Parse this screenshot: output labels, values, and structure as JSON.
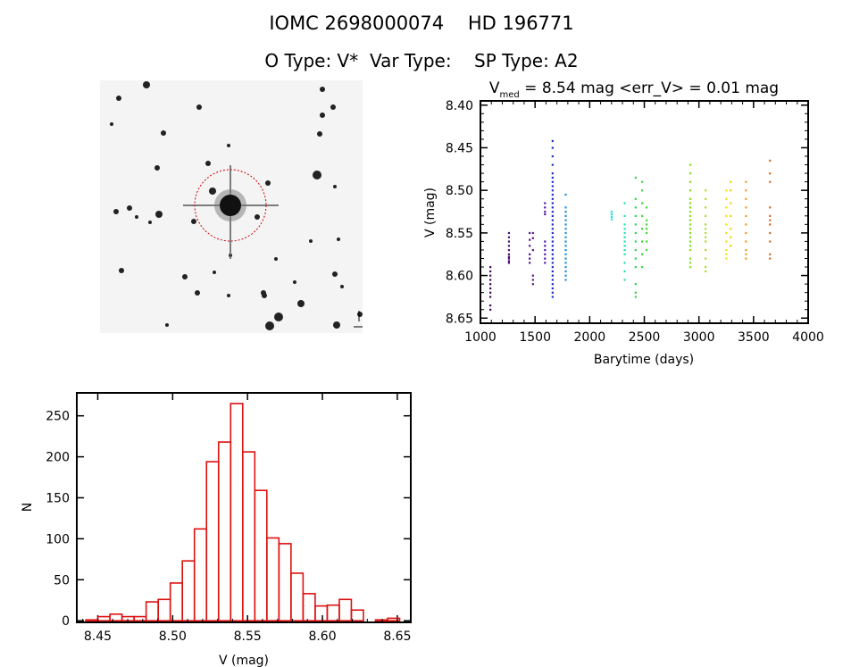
{
  "header": {
    "title_line1": "IOMC 2698000074    HD 196771",
    "title_line2": "O Type: V*  Var Type:    SP Type: A2"
  },
  "finder_image": {
    "type": "image",
    "description_labels_illegible": true,
    "circle_color": "#cc0000"
  },
  "chart_data": [
    {
      "type": "scatter",
      "title_prefix": "V",
      "title_subscript": "med",
      "title_rest": " = 8.54 mag <err_V> = 0.01 mag",
      "xlabel": "Barytime (days)",
      "ylabel": "V (mag)",
      "xlim": [
        1000,
        4000
      ],
      "ylim": [
        8.395,
        8.656
      ],
      "y_inverted": true,
      "xticks": [
        "1000",
        "1500",
        "2000",
        "2500",
        "3000",
        "3500",
        "4000"
      ],
      "yticks": [
        "8.40",
        "8.45",
        "8.50",
        "8.55",
        "8.60",
        "8.65"
      ],
      "grid": false,
      "series": [
        {
          "x": 1090,
          "color": "#3c0a5c",
          "y": [
            8.59,
            8.595,
            8.6,
            8.605,
            8.61,
            8.615,
            8.62,
            8.625,
            8.635,
            8.64
          ]
        },
        {
          "x": 1260,
          "color": "#4a0f70",
          "y": [
            8.55,
            8.555,
            8.56,
            8.565,
            8.57,
            8.575,
            8.578,
            8.58,
            8.583,
            8.585
          ]
        },
        {
          "x": 1450,
          "color": "#55158a",
          "y": [
            8.55,
            8.558,
            8.565,
            8.575,
            8.58,
            8.585
          ]
        },
        {
          "x": 1480,
          "color": "#55158a",
          "y": [
            8.55,
            8.556,
            8.57,
            8.6,
            8.605,
            8.61
          ]
        },
        {
          "x": 1590,
          "color": "#4e1ca2",
          "y": [
            8.515,
            8.52,
            8.525,
            8.528,
            8.56,
            8.565,
            8.57,
            8.575,
            8.58,
            8.585
          ]
        },
        {
          "x": 1660,
          "color": "#1a2ed4",
          "y": [
            8.442,
            8.45,
            8.46,
            8.47,
            8.48,
            8.485,
            8.49,
            8.495,
            8.5,
            8.505,
            8.51,
            8.515,
            8.52,
            8.525,
            8.53,
            8.535,
            8.54,
            8.545,
            8.55,
            8.555,
            8.56,
            8.565,
            8.57,
            8.575,
            8.58,
            8.585,
            8.59,
            8.595,
            8.6,
            8.605,
            8.61,
            8.615,
            8.62,
            8.625
          ]
        },
        {
          "x": 1780,
          "color": "#1e8ee0",
          "y": [
            8.505,
            8.52,
            8.525,
            8.53,
            8.535,
            8.54,
            8.545,
            8.55,
            8.555,
            8.56,
            8.565,
            8.57,
            8.575,
            8.58,
            8.585,
            8.59,
            8.595,
            8.6,
            8.605
          ]
        },
        {
          "x": 2200,
          "color": "#20e0e8",
          "y": [
            8.525,
            8.528,
            8.531,
            8.534
          ]
        },
        {
          "x": 2320,
          "color": "#20e0b8",
          "y": [
            8.515,
            8.53,
            8.54,
            8.545,
            8.55,
            8.555,
            8.56,
            8.565,
            8.57,
            8.575,
            8.585,
            8.595,
            8.605
          ]
        },
        {
          "x": 2420,
          "color": "#30d84a",
          "y": [
            8.485,
            8.51,
            8.52,
            8.53,
            8.54,
            8.55,
            8.56,
            8.57,
            8.58,
            8.59,
            8.61,
            8.62,
            8.625
          ]
        },
        {
          "x": 2480,
          "color": "#38d838",
          "y": [
            8.49,
            8.5,
            8.515,
            8.53,
            8.545,
            8.56,
            8.575,
            8.59
          ]
        },
        {
          "x": 2520,
          "color": "#40d830",
          "y": [
            8.52,
            8.535,
            8.54,
            8.545,
            8.55,
            8.56,
            8.57
          ]
        },
        {
          "x": 2920,
          "color": "#7ee020",
          "y": [
            8.47,
            8.48,
            8.49,
            8.5,
            8.51,
            8.515,
            8.52,
            8.525,
            8.53,
            8.535,
            8.54,
            8.545,
            8.55,
            8.555,
            8.56,
            8.565,
            8.57,
            8.58,
            8.585,
            8.59
          ]
        },
        {
          "x": 3060,
          "color": "#a8e020",
          "y": [
            8.5,
            8.51,
            8.52,
            8.53,
            8.54,
            8.545,
            8.55,
            8.555,
            8.56,
            8.57,
            8.58,
            8.59,
            8.595
          ]
        },
        {
          "x": 3250,
          "color": "#e6e610",
          "y": [
            8.5,
            8.51,
            8.52,
            8.53,
            8.54,
            8.55,
            8.56,
            8.57,
            8.575,
            8.58
          ]
        },
        {
          "x": 3290,
          "color": "#eed010",
          "y": [
            8.49,
            8.5,
            8.515,
            8.53,
            8.545,
            8.555,
            8.565
          ]
        },
        {
          "x": 3430,
          "color": "#eca020",
          "y": [
            8.49,
            8.5,
            8.51,
            8.52,
            8.53,
            8.54,
            8.55,
            8.56,
            8.57,
            8.575,
            8.58
          ]
        },
        {
          "x": 3650,
          "color": "#e06818",
          "y": [
            8.465,
            8.48,
            8.49,
            8.52,
            8.53,
            8.535,
            8.54,
            8.55,
            8.56,
            8.575,
            8.58
          ]
        }
      ]
    },
    {
      "type": "bar",
      "histogram": true,
      "xlabel": "V (mag)",
      "ylabel": "N",
      "xlim": [
        8.436,
        8.659
      ],
      "ylim": [
        -2,
        278
      ],
      "xticks": [
        "8.45",
        "8.50",
        "8.55",
        "8.60",
        "8.65"
      ],
      "yticks": [
        "0",
        "50",
        "100",
        "150",
        "200",
        "250"
      ],
      "bin_start": 8.442,
      "bin_width": 0.00806,
      "counts": [
        1,
        5,
        8,
        5,
        5,
        23,
        26,
        46,
        73,
        112,
        194,
        218,
        265,
        206,
        159,
        101,
        94,
        58,
        33,
        18,
        19,
        26,
        13,
        0,
        1,
        3
      ],
      "color": "#dd1111",
      "grid": false
    }
  ]
}
